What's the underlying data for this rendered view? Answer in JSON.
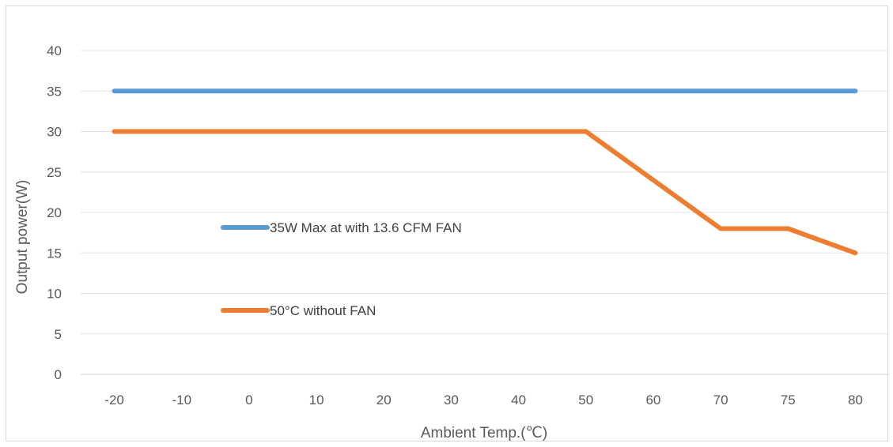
{
  "chart_data": {
    "type": "line",
    "categories": [
      "-20",
      "-10",
      "0",
      "10",
      "20",
      "30",
      "40",
      "50",
      "60",
      "70",
      "75",
      "80"
    ],
    "series": [
      {
        "name": "35W Max at with 13.6 CFM FAN",
        "color": "#5b9bd5",
        "values": [
          35,
          35,
          35,
          35,
          35,
          35,
          35,
          35,
          35,
          35,
          35,
          35
        ]
      },
      {
        "name": "50°C  without FAN",
        "color": "#ed7d31",
        "values": [
          30,
          30,
          30,
          30,
          30,
          30,
          30,
          30,
          24,
          18,
          18,
          15
        ]
      }
    ],
    "xlabel": "Ambient Temp.(℃)",
    "ylabel": "Output power(W)",
    "ylim": [
      0,
      40
    ],
    "yticks": [
      "0",
      "5",
      "10",
      "15",
      "20",
      "25",
      "30",
      "35",
      "40"
    ],
    "grid": true,
    "legend_position": "inside-left"
  }
}
